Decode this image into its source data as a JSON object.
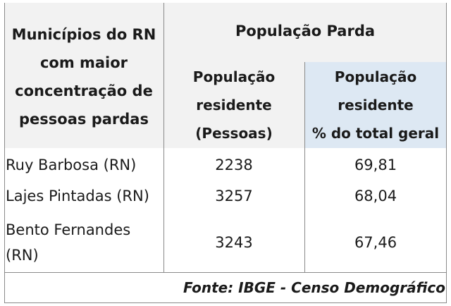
{
  "header": {
    "municipios_lines": [
      "Municípios do RN",
      "com maior",
      "concentração de",
      "pessoas pardas"
    ],
    "group_title": "População Parda",
    "col_residentes_lines": [
      "População",
      "residente",
      "(Pessoas)"
    ],
    "col_percent_lines": [
      "População",
      "residente",
      "% do total geral"
    ]
  },
  "rows": [
    {
      "municipio": "Ruy Barbosa (RN)",
      "residentes": "2238",
      "percent": "69,81"
    },
    {
      "municipio": "Lajes Pintadas (RN)",
      "residentes": "3257",
      "percent": "68,04"
    },
    {
      "municipio_lines": [
        "Bento Fernandes",
        "(RN)"
      ],
      "residentes": "3243",
      "percent": "67,46"
    }
  ],
  "footer": {
    "source": "Fonte: IBGE - Censo Demográfico"
  },
  "colors": {
    "header_bg": "#f2f2f2",
    "highlight_bg": "#dde8f3",
    "grid_line": "#8a8a8a"
  }
}
